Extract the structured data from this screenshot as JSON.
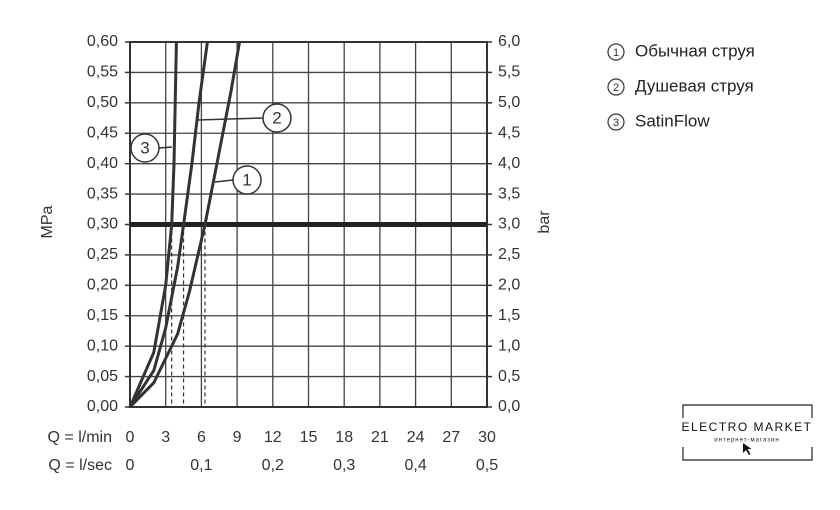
{
  "chart_data": {
    "type": "line",
    "xlabel": "Q = l/min",
    "x2label": "Q = l/sec",
    "ylabel": "MPa",
    "y2label": "bar",
    "xlim": [
      0,
      30
    ],
    "xticks": [
      0,
      3,
      6,
      9,
      12,
      15,
      18,
      21,
      24,
      27,
      30
    ],
    "x2lim": [
      0,
      0.5
    ],
    "x2ticks": [
      0,
      {
        "value": 0.1,
        "label": "0,1"
      },
      {
        "value": 0.2,
        "label": "0,2"
      },
      {
        "value": 0.3,
        "label": "0,3"
      },
      {
        "value": 0.4,
        "label": "0,4"
      },
      {
        "value": 0.5,
        "label": "0,5"
      }
    ],
    "ylim": [
      0,
      0.6
    ],
    "yticks": [
      {
        "value": 0,
        "label": "0,00"
      },
      {
        "value": 0.05,
        "label": "0,05"
      },
      {
        "value": 0.1,
        "label": "0,10"
      },
      {
        "value": 0.15,
        "label": "0,15"
      },
      {
        "value": 0.2,
        "label": "0,20"
      },
      {
        "value": 0.25,
        "label": "0,25"
      },
      {
        "value": 0.3,
        "label": "0,30"
      },
      {
        "value": 0.35,
        "label": "0,35"
      },
      {
        "value": 0.4,
        "label": "0,40"
      },
      {
        "value": 0.45,
        "label": "0,45"
      },
      {
        "value": 0.5,
        "label": "0,50"
      },
      {
        "value": 0.55,
        "label": "0,55"
      },
      {
        "value": 0.6,
        "label": "0,60"
      }
    ],
    "y2lim": [
      0,
      6
    ],
    "y2ticks": [
      {
        "value": 0,
        "label": "0,0"
      },
      {
        "value": 0.5,
        "label": "0,5"
      },
      {
        "value": 1,
        "label": "1,0"
      },
      {
        "value": 1.5,
        "label": "1,5"
      },
      {
        "value": 2,
        "label": "2,0"
      },
      {
        "value": 2.5,
        "label": "2,5"
      },
      {
        "value": 3,
        "label": "3,0"
      },
      {
        "value": 3.5,
        "label": "3,5"
      },
      {
        "value": 4,
        "label": "4,0"
      },
      {
        "value": 4.5,
        "label": "4,5"
      },
      {
        "value": 5,
        "label": "5,0"
      },
      {
        "value": 5.5,
        "label": "5,5"
      },
      {
        "value": 6,
        "label": "6,0"
      }
    ],
    "grid": true,
    "reference_y": 0.3,
    "drop_lines": [
      3.5,
      4.5,
      6.3
    ],
    "series": [
      {
        "name": "Обычная струя",
        "label": "1",
        "color": "#333333",
        "x": [
          0,
          2,
          4,
          5,
          6.3,
          7.5,
          8.5,
          9.2
        ],
        "values": [
          0,
          0.04,
          0.12,
          0.19,
          0.3,
          0.42,
          0.52,
          0.6
        ]
      },
      {
        "name": "Душевая струя",
        "label": "2",
        "color": "#333333",
        "x": [
          0,
          2,
          3,
          4,
          4.5,
          5.2,
          5.8,
          6.5
        ],
        "values": [
          0,
          0.06,
          0.13,
          0.23,
          0.3,
          0.4,
          0.5,
          0.6
        ]
      },
      {
        "name": "SatinFlow",
        "label": "3",
        "color": "#333333",
        "x": [
          0,
          2,
          3,
          3.5,
          3.7,
          3.8,
          3.9
        ],
        "values": [
          0,
          0.09,
          0.2,
          0.3,
          0.4,
          0.5,
          0.6
        ]
      }
    ],
    "watermark": {
      "title": "ELECTRO MARKET",
      "subtitle": "интернет-магазин"
    }
  }
}
